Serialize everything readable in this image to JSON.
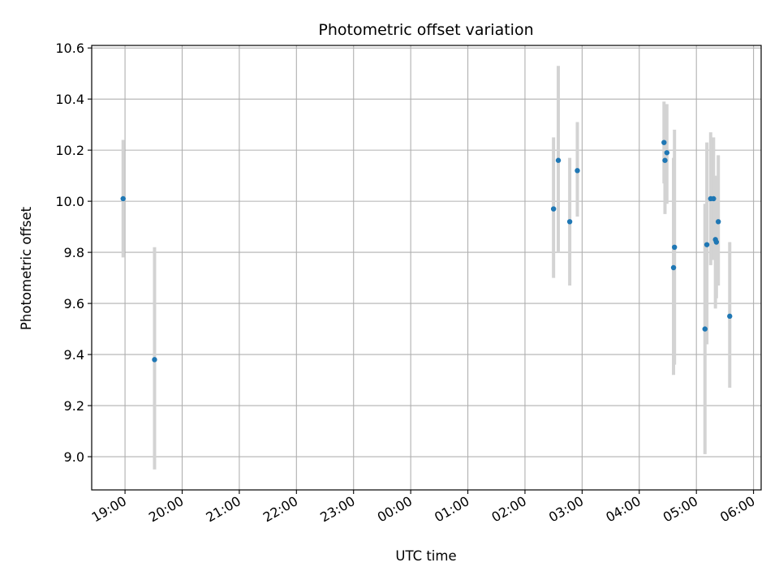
{
  "chart_data": {
    "type": "scatter",
    "title": "Photometric offset variation",
    "xlabel": "UTC time",
    "ylabel": "Photometric offset",
    "x_ticks": [
      "19:00",
      "20:00",
      "21:00",
      "22:00",
      "23:00",
      "00:00",
      "01:00",
      "02:00",
      "03:00",
      "04:00",
      "05:00",
      "06:00"
    ],
    "y_ticks": [
      "9.0",
      "9.2",
      "9.4",
      "9.6",
      "9.8",
      "10.0",
      "10.2",
      "10.4",
      "10.6"
    ],
    "x_range": [
      "18:25",
      "06:08"
    ],
    "x_tick_start": "19:00",
    "ylim": [
      8.87,
      10.61
    ],
    "grid": true,
    "marker_color": "#1f77b4",
    "errorbar_color": "#d3d3d3",
    "points": [
      {
        "t": "18:58",
        "y": 10.01,
        "lo": 9.78,
        "hi": 10.24
      },
      {
        "t": "19:31",
        "y": 9.38,
        "lo": 8.95,
        "hi": 9.82
      },
      {
        "t": "02:30",
        "y": 9.97,
        "lo": 9.7,
        "hi": 10.25
      },
      {
        "t": "02:35",
        "y": 10.16,
        "lo": 9.8,
        "hi": 10.53
      },
      {
        "t": "02:47",
        "y": 9.92,
        "lo": 9.67,
        "hi": 10.17
      },
      {
        "t": "02:55",
        "y": 10.12,
        "lo": 9.94,
        "hi": 10.31
      },
      {
        "t": "04:26",
        "y": 10.23,
        "lo": 10.07,
        "hi": 10.39
      },
      {
        "t": "04:27",
        "y": 10.16,
        "lo": 9.95,
        "hi": 10.36
      },
      {
        "t": "04:29",
        "y": 10.19,
        "lo": 9.99,
        "hi": 10.38
      },
      {
        "t": "04:36",
        "y": 9.74,
        "lo": 9.32,
        "hi": 10.17
      },
      {
        "t": "04:37",
        "y": 9.82,
        "lo": 9.36,
        "hi": 10.28
      },
      {
        "t": "05:09",
        "y": 9.5,
        "lo": 9.01,
        "hi": 9.99
      },
      {
        "t": "05:11",
        "y": 9.83,
        "lo": 9.44,
        "hi": 10.23
      },
      {
        "t": "05:15",
        "y": 10.01,
        "lo": 9.75,
        "hi": 10.27
      },
      {
        "t": "05:18",
        "y": 10.01,
        "lo": 9.77,
        "hi": 10.25
      },
      {
        "t": "05:20",
        "y": 9.85,
        "lo": 9.58,
        "hi": 10.1
      },
      {
        "t": "05:21",
        "y": 9.84,
        "lo": 9.62,
        "hi": 10.05
      },
      {
        "t": "05:23",
        "y": 9.92,
        "lo": 9.67,
        "hi": 10.18
      },
      {
        "t": "05:35",
        "y": 9.55,
        "lo": 9.27,
        "hi": 9.84
      }
    ]
  }
}
